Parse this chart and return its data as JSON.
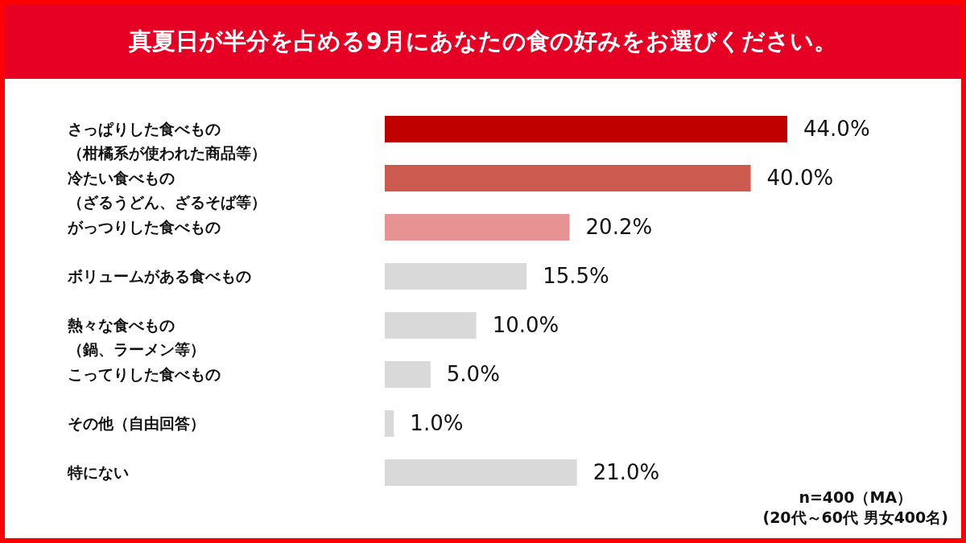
{
  "chart_data": {
    "type": "bar",
    "orientation": "horizontal",
    "title": "真夏日が半分を占める9月にあなたの食の好みをお選びください。",
    "categories": [
      "さっぱりした食べもの（柑橘系が使われた商品等）",
      "冷たい食べもの（ざるうどん、ざるそば等）",
      "がっつりした食べもの",
      "ボリュームがある食べもの",
      "熱々な食べもの（鍋、ラーメン等）",
      "こってりした食べもの",
      "その他（自由回答）",
      "特にない"
    ],
    "values": [
      44.0,
      40.0,
      20.2,
      15.5,
      10.0,
      5.0,
      1.0,
      21.0
    ],
    "value_labels": [
      "44.0%",
      "40.0%",
      "20.2%",
      "15.5%",
      "10.0%",
      "5.0%",
      "1.0%",
      "21.0%"
    ],
    "colors": [
      "#c00000",
      "#cd5a4e",
      "#e89393",
      "#d9d9d9",
      "#d9d9d9",
      "#d9d9d9",
      "#d9d9d9",
      "#d9d9d9"
    ],
    "annotations": [
      "n=400（MA）",
      "(20代～60代 男女400名)"
    ]
  }
}
